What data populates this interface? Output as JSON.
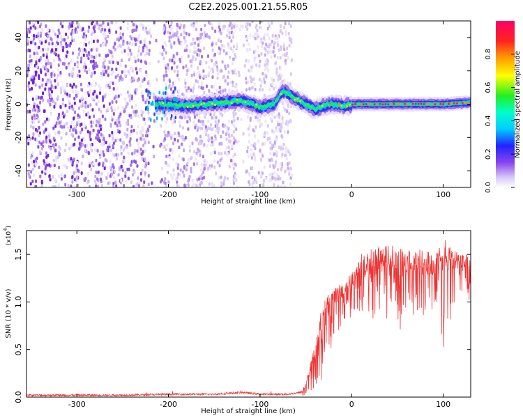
{
  "title": "C2E2.2025.001.21.55.R05",
  "chart_data": [
    {
      "type": "heatmap",
      "xlabel": "Height of straight line (km)",
      "ylabel": "Frequency (Hz)",
      "xlim": [
        -355,
        130
      ],
      "ylim": [
        -50,
        50
      ],
      "xticks": [
        -300,
        -200,
        -100,
        0,
        100
      ],
      "yticks": [
        -40,
        -20,
        0,
        20,
        40
      ],
      "colorbar": {
        "label": "Normalized spectral amplitude",
        "range": [
          0.0,
          1.0
        ],
        "ticks": [
          "0.0",
          "0.2",
          "0.4",
          "0.6",
          "0.8"
        ],
        "colormap": "white-lavender-purple-blue-cyan-green-yellow-orange-red-magenta"
      },
      "noise_region_x": [
        -355,
        -65
      ],
      "noise_gaps_x": [
        [
          -220,
          -205
        ],
        [
          -125,
          -115
        ]
      ],
      "ridge": [
        {
          "x": -215,
          "f": 0
        },
        {
          "x": -200,
          "f": 0
        },
        {
          "x": -180,
          "f": -1
        },
        {
          "x": -160,
          "f": 0
        },
        {
          "x": -140,
          "f": 1
        },
        {
          "x": -120,
          "f": 2
        },
        {
          "x": -100,
          "f": -2
        },
        {
          "x": -85,
          "f": 0
        },
        {
          "x": -75,
          "f": 8
        },
        {
          "x": -60,
          "f": 3
        },
        {
          "x": -40,
          "f": -3
        },
        {
          "x": -25,
          "f": 0
        },
        {
          "x": -10,
          "f": -1
        },
        {
          "x": 5,
          "f": 0
        },
        {
          "x": 50,
          "f": 0
        },
        {
          "x": 100,
          "f": 0
        },
        {
          "x": 130,
          "f": 1
        }
      ],
      "colors": {
        "ridge_core": "#ff3333",
        "ridge_edge": "#00ddee",
        "noise": "#7733dd"
      }
    },
    {
      "type": "line",
      "xlabel": "Height of straight line (km)",
      "ylabel": "SNR (10 * v/v)",
      "y_multiplier": "(x10",
      "y_multiplier_exp": "4",
      "xlim": [
        -355,
        130
      ],
      "ylim": [
        0,
        1.75
      ],
      "xticks": [
        -300,
        -200,
        -100,
        0,
        100
      ],
      "yticks": [
        "0.0",
        "0.5",
        "1.0",
        "1.5"
      ],
      "series": [
        {
          "color": "#ee3333",
          "x": [
            -355,
            -300,
            -250,
            -200,
            -150,
            -120,
            -100,
            -70,
            -55,
            -50,
            -45,
            -40,
            -35,
            -30,
            -25,
            -20,
            -15,
            -10,
            -5,
            0,
            5,
            10,
            20,
            30,
            40,
            50,
            60,
            70,
            80,
            90,
            95,
            100,
            110,
            120,
            130
          ],
          "y": [
            0.02,
            0.02,
            0.02,
            0.03,
            0.03,
            0.05,
            0.03,
            0.03,
            0.05,
            0.15,
            0.35,
            0.6,
            0.85,
            1.0,
            1.1,
            1.15,
            1.2,
            1.2,
            1.25,
            1.3,
            1.4,
            1.5,
            1.55,
            1.6,
            1.6,
            1.6,
            1.58,
            1.55,
            1.55,
            1.5,
            1.6,
            1.7,
            1.55,
            1.5,
            1.5
          ],
          "y_min_envelope": [
            0.0,
            0.0,
            0.0,
            0.0,
            0.0,
            0.0,
            0.0,
            0.0,
            0.0,
            0.02,
            0.05,
            0.1,
            0.15,
            0.2,
            0.4,
            0.6,
            0.7,
            0.7,
            0.8,
            0.8,
            0.9,
            0.9,
            0.8,
            0.8,
            0.8,
            0.7,
            0.6,
            0.65,
            0.8,
            0.9,
            0.7,
            0.5,
            0.9,
            1.1,
            1.0
          ]
        }
      ]
    }
  ]
}
